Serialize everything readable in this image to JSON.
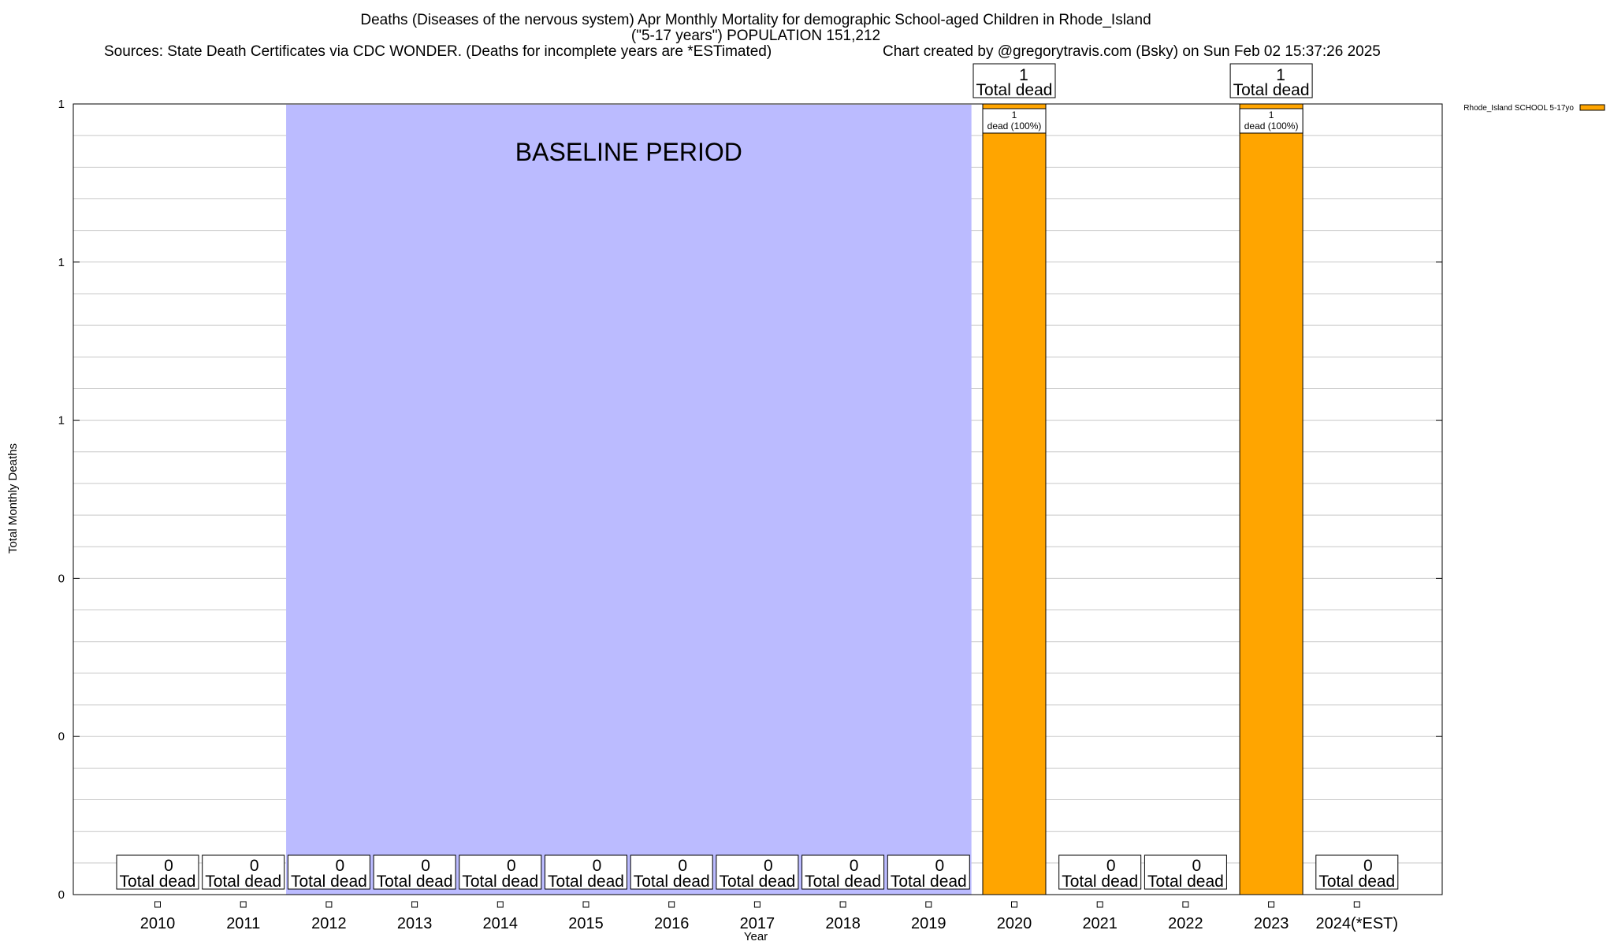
{
  "chart_data": {
    "type": "bar",
    "title_lines": [
      "Deaths (Diseases of the nervous system) Apr Monthly Mortality for demographic School-aged Children in Rhode_Island",
      "(\"5-17 years\") POPULATION 151,212"
    ],
    "sources": "Sources: State Death Certificates via CDC WONDER. (Deaths for incomplete years are *ESTimated)",
    "credit": "Chart created by @gregorytravis.com (Bsky) on Sun Feb 02 15:37:26 2025",
    "xlabel": "Year",
    "ylabel": "Total Monthly Deaths",
    "categories": [
      "2010",
      "2011",
      "2012",
      "2013",
      "2014",
      "2015",
      "2016",
      "2017",
      "2018",
      "2019",
      "2020",
      "2021",
      "2022",
      "2023",
      "2024(*EST)"
    ],
    "series": [
      {
        "name": "Rhode_Island SCHOOL 5-17yo",
        "color": "#FFA500",
        "values": [
          0,
          0,
          0,
          0,
          0,
          0,
          0,
          0,
          0,
          0,
          1,
          0,
          0,
          1,
          0
        ]
      }
    ],
    "ylim": [
      0,
      1
    ],
    "y_tick_labels": [
      "0",
      "0",
      "0",
      "1",
      "1",
      "1"
    ],
    "grid": true,
    "legend_position": "top-right",
    "baseline": {
      "label": "BASELINE PERIOD",
      "from": "2012",
      "to": "2019",
      "color": "#BBBBFF"
    },
    "total_label_suffix": "Total dead",
    "segment_labels": {
      "2020": [
        "1",
        "dead (100%)"
      ],
      "2023": [
        "1",
        "dead (100%)"
      ]
    }
  }
}
